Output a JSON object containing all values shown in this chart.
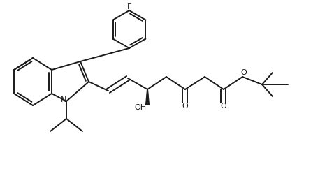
{
  "background": "#ffffff",
  "line_color": "#1a1a1a",
  "lw": 1.4,
  "figsize": [
    4.78,
    2.42
  ],
  "dpi": 100,
  "xlim": [
    0,
    478
  ],
  "ylim": [
    0,
    242
  ]
}
